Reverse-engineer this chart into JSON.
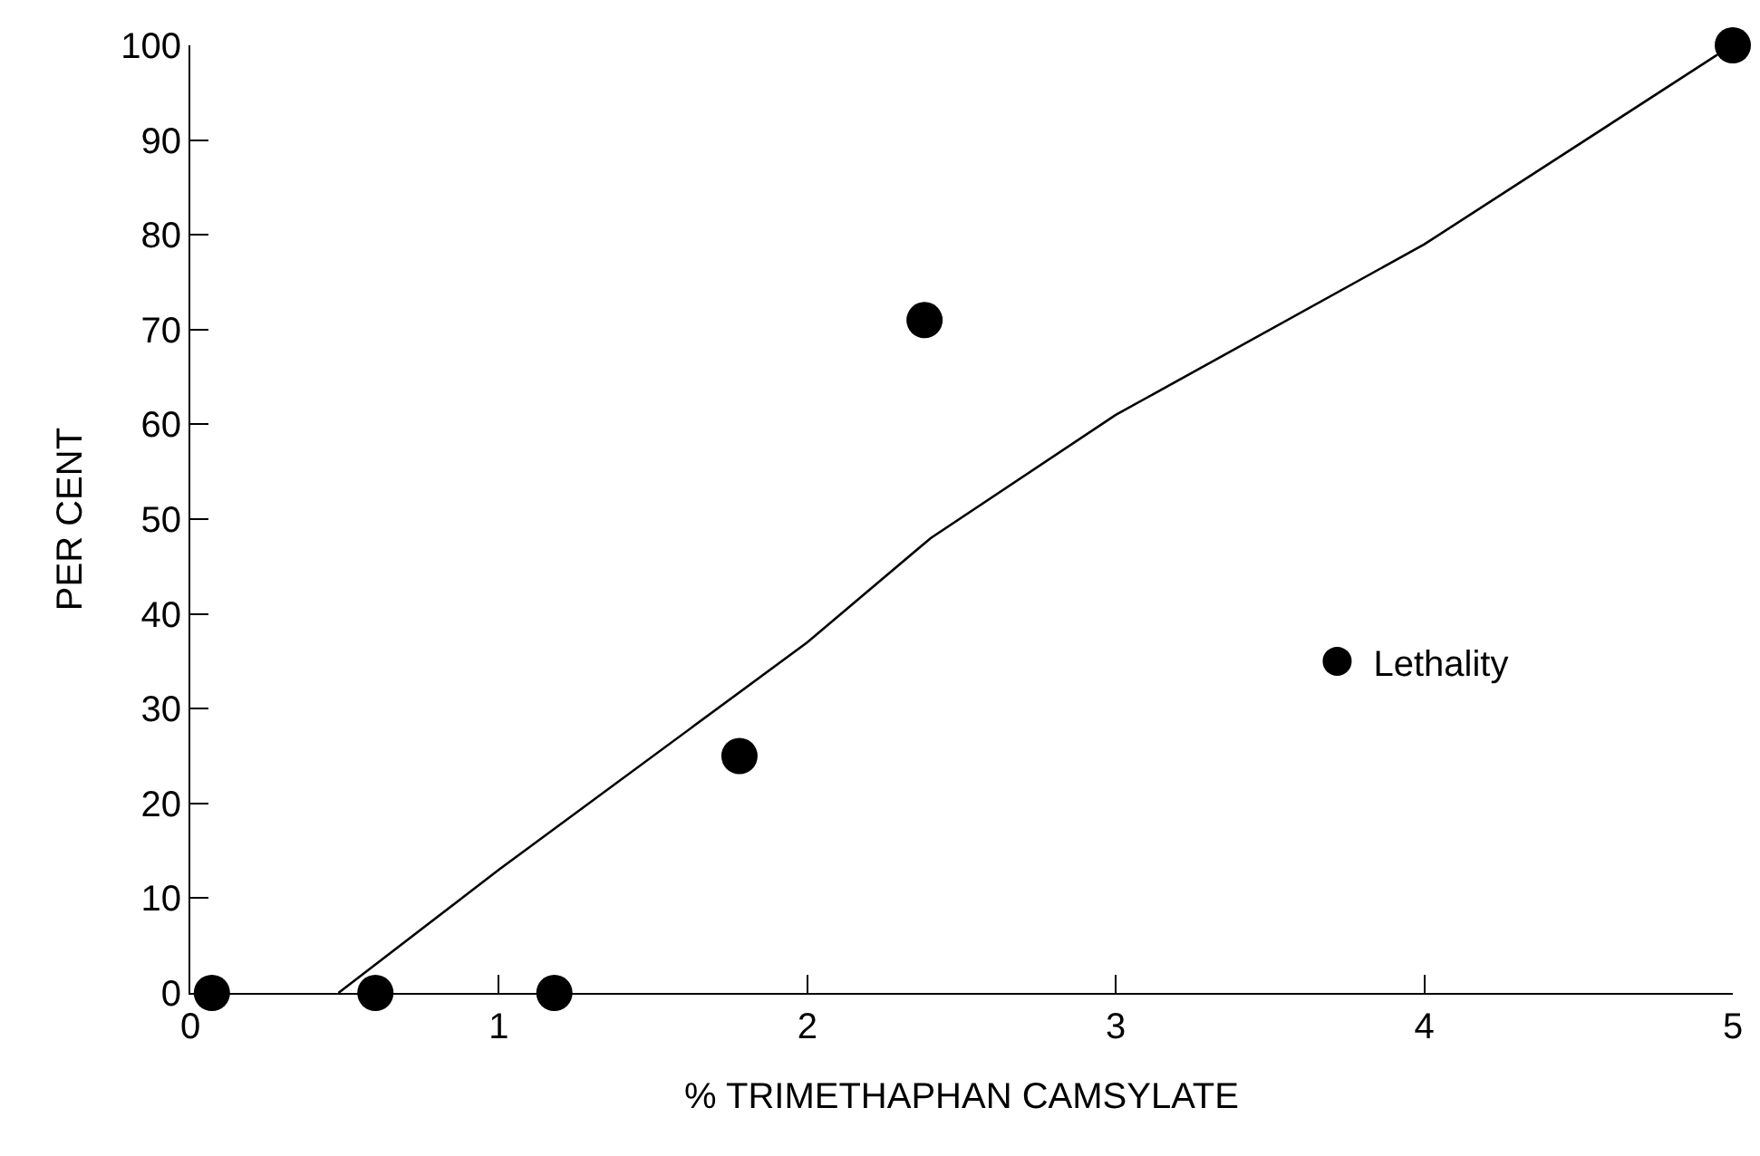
{
  "chart_data": {
    "type": "scatter",
    "xlabel": "% TRIMETHAPHAN CAMSYLATE",
    "ylabel": "PER CENT",
    "xlim": [
      0,
      5
    ],
    "ylim": [
      0,
      100
    ],
    "xticks": [
      0,
      1,
      2,
      3,
      4,
      5
    ],
    "yticks": [
      0,
      10,
      20,
      30,
      40,
      50,
      60,
      70,
      80,
      90,
      100
    ],
    "grid": false,
    "legend": "right",
    "marker": "circle",
    "series": [
      {
        "name": "Lethality",
        "color": "#000000",
        "x": [
          0.07,
          0.6,
          1.18,
          1.78,
          2.38,
          5.0
        ],
        "values": [
          0,
          0,
          0,
          25,
          71,
          100
        ]
      },
      {
        "type": "line",
        "color": "#000000",
        "line_style": "solid",
        "marker": "none",
        "x": [
          0.48,
          1,
          2,
          2.4,
          3,
          4,
          4.95
        ],
        "values": [
          0,
          13,
          37,
          48,
          61,
          79,
          99
        ]
      }
    ]
  }
}
